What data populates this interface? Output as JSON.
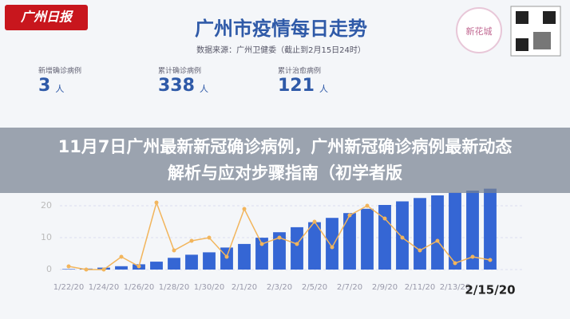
{
  "logo": "广州日报",
  "brand": "新花城",
  "banner_title": "11月7日广州最新新冠确诊病例，广州新冠确诊病例最新动态解析与应对步骤指南（初学者版",
  "stats": [
    {
      "label": "新增确诊病例",
      "value": 3,
      "unit": "人"
    },
    {
      "label": "累计确诊病例",
      "value": 338,
      "unit": "人"
    },
    {
      "label": "累计治愈病例",
      "value": 121,
      "unit": "人"
    }
  ],
  "chart_data": {
    "type": "bar-line",
    "title": "广州市疫情每日走势",
    "subtitle": "数据来源：广州卫健委（截止到2月15日24时）",
    "categories": [
      "1/22/20",
      null,
      "1/24/20",
      null,
      "1/26/20",
      null,
      "1/28/20",
      null,
      "1/30/20",
      null,
      "2/1/20",
      null,
      "2/3/20",
      null,
      "2/5/20",
      null,
      "2/7/20",
      null,
      "2/9/20",
      null,
      "2/11/20",
      null,
      "2/13/20",
      null,
      "2/15/20"
    ],
    "series": [
      {
        "name": "累计确诊病例",
        "color": "#3566d4",
        "axis": "y2",
        "values": [
          2,
          4,
          8,
          14,
          22,
          33,
          49,
          62,
          72,
          92,
          107,
          133,
          156,
          177,
          198,
          216,
          236,
          254,
          270,
          285,
          299,
          310,
          321,
          330,
          338
        ]
      },
      {
        "name": "新增确诊病例",
        "color": "#f2b55c",
        "values": [
          1,
          0,
          0,
          4,
          1,
          21,
          6,
          9,
          10,
          4,
          19,
          8,
          10,
          8,
          15,
          7,
          17,
          20,
          16,
          10,
          6,
          9,
          2,
          4,
          3
        ]
      }
    ],
    "ylim": [
      0,
      27
    ],
    "yticks": [
      0,
      10,
      20
    ],
    "y2lim": [
      0,
      360
    ],
    "grid": true
  }
}
